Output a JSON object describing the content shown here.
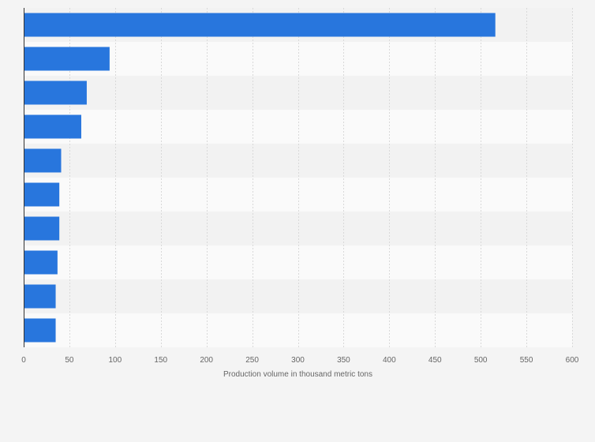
{
  "chart_data": {
    "type": "bar",
    "orientation": "horizontal",
    "categories": [
      "",
      "",
      "",
      "",
      "",
      "",
      "",
      "",
      "",
      ""
    ],
    "values": [
      516,
      94,
      69,
      63,
      41,
      39,
      39,
      37,
      35,
      35
    ],
    "title": "",
    "xlabel": "Production volume in thousand metric tons",
    "ylabel": "",
    "xlim": [
      0,
      600
    ],
    "xticks": [
      0,
      50,
      100,
      150,
      200,
      250,
      300,
      350,
      400,
      450,
      500,
      550,
      600
    ],
    "xtick_labels": [
      "0",
      "50",
      "100",
      "150",
      "200",
      "250",
      "300",
      "350",
      "400",
      "450",
      "500",
      "550",
      "600"
    ],
    "grid": "vertical",
    "legend": "none",
    "colors": {
      "bar": "#2876dd",
      "background": "#f4f4f4",
      "band_light": "#fafafa",
      "band_dark": "#f2f2f2",
      "grid": "#d9d9d9",
      "axis": "#333333",
      "text": "#666666"
    }
  }
}
